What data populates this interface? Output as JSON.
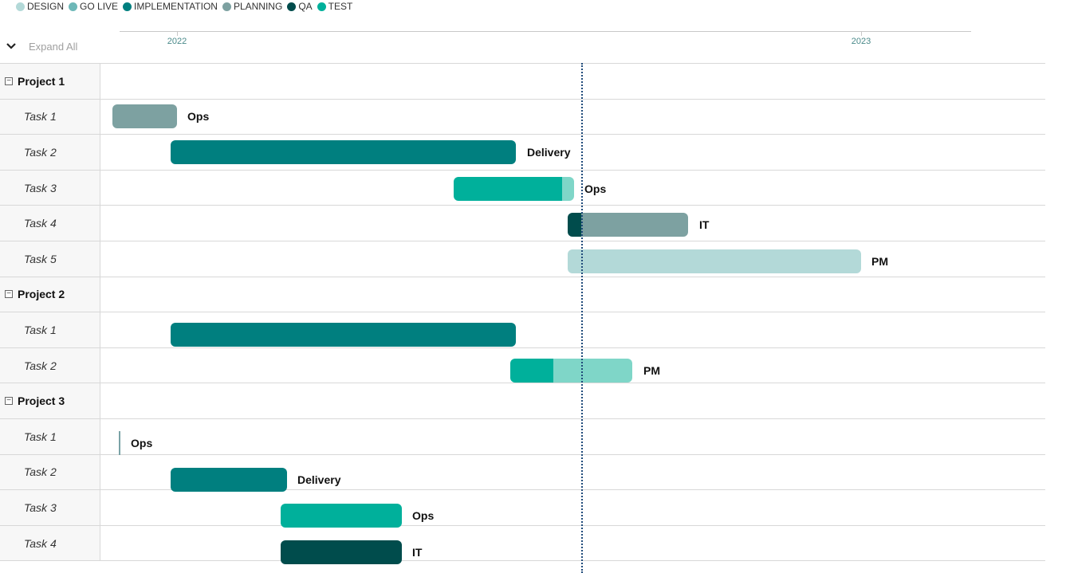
{
  "legend": [
    {
      "label": "DESIGN",
      "color": "#b3d9d8"
    },
    {
      "label": "GO LIVE",
      "color": "#6db8b8"
    },
    {
      "label": "IMPLEMENTATION",
      "color": "#007f7f"
    },
    {
      "label": "PLANNING",
      "color": "#7da1a1"
    },
    {
      "label": "QA",
      "color": "#004c4c"
    },
    {
      "label": "TEST",
      "color": "#00b09b"
    }
  ],
  "timeline": {
    "years": [
      "2022",
      "2023"
    ]
  },
  "expand_all_label": "Expand All",
  "toggle_symbol": "−",
  "rows": [
    {
      "label": "Project 1",
      "type": "project"
    },
    {
      "label": "Task 1",
      "type": "task",
      "owner": "Ops"
    },
    {
      "label": "Task 2",
      "type": "task",
      "owner": "Delivery"
    },
    {
      "label": "Task 3",
      "type": "task",
      "owner": "Ops"
    },
    {
      "label": "Task 4",
      "type": "task",
      "owner": "IT"
    },
    {
      "label": "Task 5",
      "type": "task",
      "owner": "PM"
    },
    {
      "label": "Project 2",
      "type": "project"
    },
    {
      "label": "Task 1",
      "type": "task",
      "owner": ""
    },
    {
      "label": "Task 2",
      "type": "task",
      "owner": "PM"
    },
    {
      "label": "Project 3",
      "type": "project"
    },
    {
      "label": "Task 1",
      "type": "task",
      "owner": "Ops"
    },
    {
      "label": "Task 2",
      "type": "task",
      "owner": "Delivery"
    },
    {
      "label": "Task 3",
      "type": "task",
      "owner": "Ops"
    },
    {
      "label": "Task 4",
      "type": "task",
      "owner": "IT"
    }
  ]
}
